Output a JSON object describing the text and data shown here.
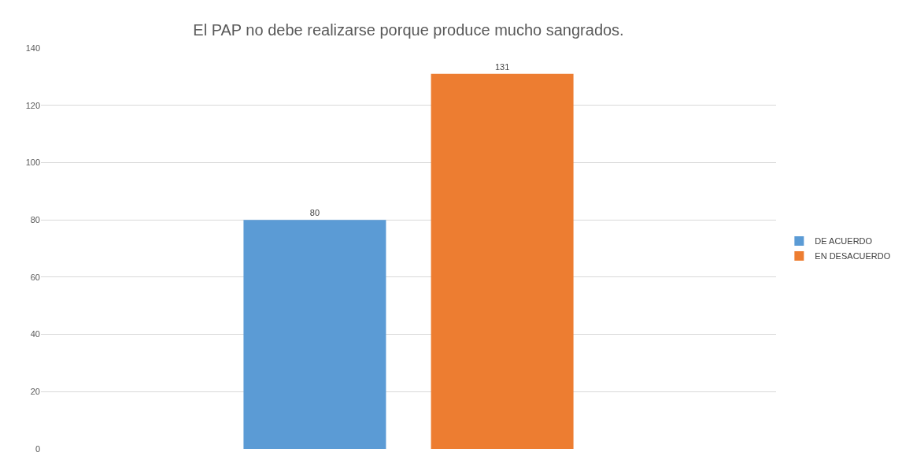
{
  "chart_data": {
    "type": "bar",
    "title": "El PAP no debe realizarse porque produce mucho sangrados.",
    "categories": [
      null
    ],
    "series": [
      {
        "name": "DE ACUERDO",
        "color": "#5b9bd5",
        "values": [
          80
        ]
      },
      {
        "name": "EN DESACUERDO",
        "color": "#ed7d31",
        "values": [
          131
        ]
      }
    ],
    "ylim": [
      0,
      140
    ],
    "yticks": [
      0,
      20,
      40,
      60,
      80,
      100,
      120,
      140
    ],
    "grid": "y",
    "legend": "right",
    "data_labels": true
  }
}
